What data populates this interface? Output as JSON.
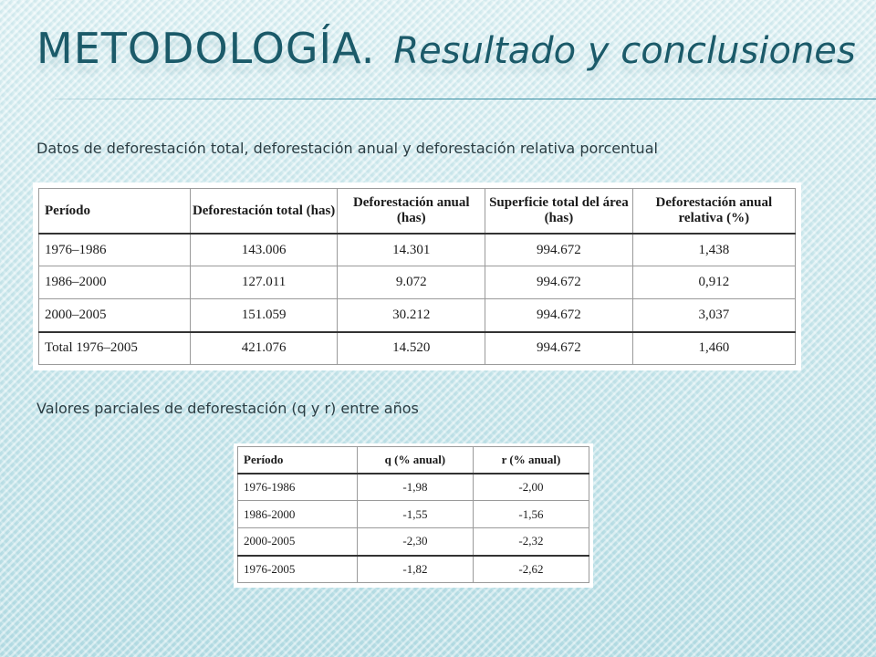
{
  "title": {
    "main": "METODOLOGÍA.",
    "subtitle": "Resultado y conclusiones"
  },
  "captions": {
    "first": "Datos de deforestación total, deforestación anual y deforestación relativa porcentual",
    "second": "Valores parciales de deforestación (q y r) entre años"
  },
  "table1": {
    "headers": [
      "Período",
      "Deforestación total (has)",
      "Deforestación anual (has)",
      "Superficie total del área (has)",
      "Deforestación anual relativa (%)"
    ],
    "rows": [
      [
        "1976–1986",
        "143.006",
        "14.301",
        "994.672",
        "1,438"
      ],
      [
        "1986–2000",
        "127.011",
        "9.072",
        "994.672",
        "0,912"
      ],
      [
        "2000–2005",
        "151.059",
        "30.212",
        "994.672",
        "3,037"
      ]
    ],
    "total_row": [
      "Total 1976–2005",
      "421.076",
      "14.520",
      "994.672",
      "1,460"
    ]
  },
  "table2": {
    "headers": [
      "Período",
      "q (% anual)",
      "r (% anual)"
    ],
    "rows": [
      [
        "1976-1986",
        "-1,98",
        "-2,00"
      ],
      [
        "1986-2000",
        "-1,55",
        "-1,56"
      ],
      [
        "2000-2005",
        "-2,30",
        "-2,32"
      ]
    ],
    "total_row": [
      "1976-2005",
      "-1,82",
      "-2,62"
    ]
  }
}
